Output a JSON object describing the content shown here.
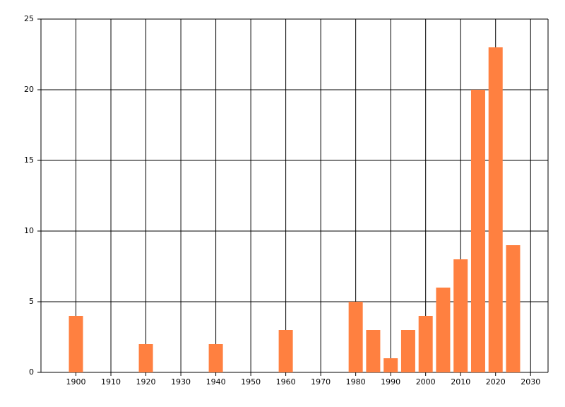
{
  "chart_data": {
    "type": "bar",
    "x": [
      1900,
      1920,
      1940,
      1960,
      1980,
      1985,
      1990,
      1995,
      2000,
      2005,
      2010,
      2015,
      2020,
      2025
    ],
    "values": [
      4,
      2,
      2,
      3,
      5,
      3,
      1,
      3,
      4,
      6,
      8,
      20,
      23,
      9
    ],
    "color": "#ff8040",
    "xlim": [
      1890,
      2035
    ],
    "xticks": [
      1900,
      1910,
      1920,
      1930,
      1940,
      1950,
      1960,
      1970,
      1980,
      1990,
      2000,
      2010,
      2020,
      2030
    ],
    "ylim": [
      0,
      25
    ],
    "yticks": [
      0,
      5,
      10,
      15,
      20,
      25
    ],
    "grid": true
  }
}
